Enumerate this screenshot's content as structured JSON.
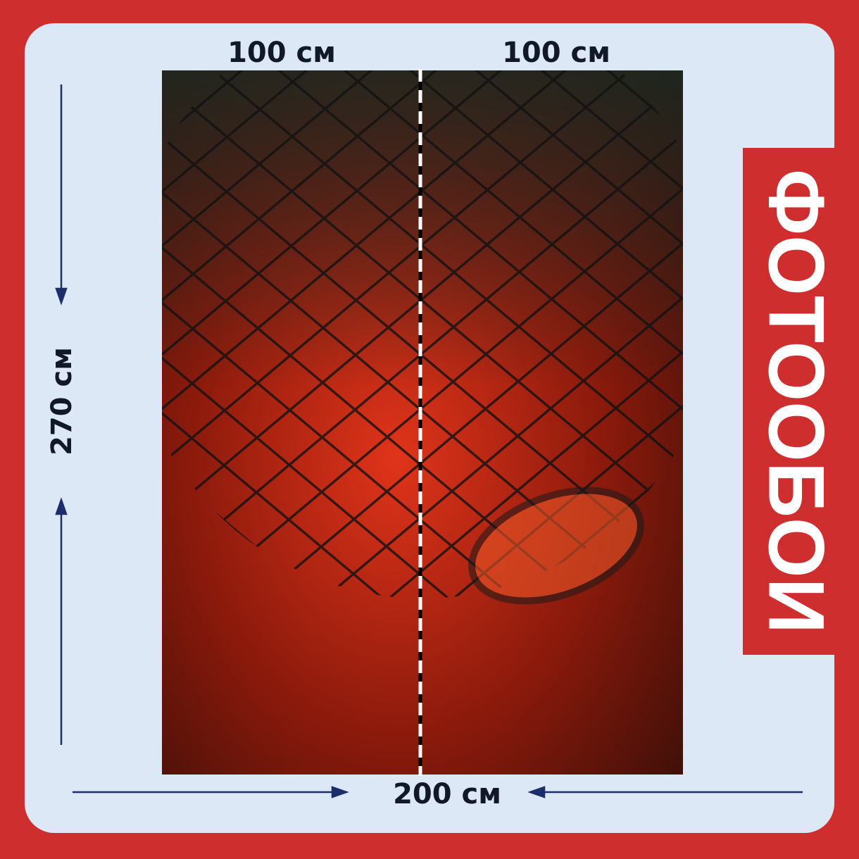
{
  "widths": [
    "100 см",
    "100 см"
  ],
  "height": "270 см",
  "total_width": "200 см",
  "banner": "ФОТООБОИ"
}
